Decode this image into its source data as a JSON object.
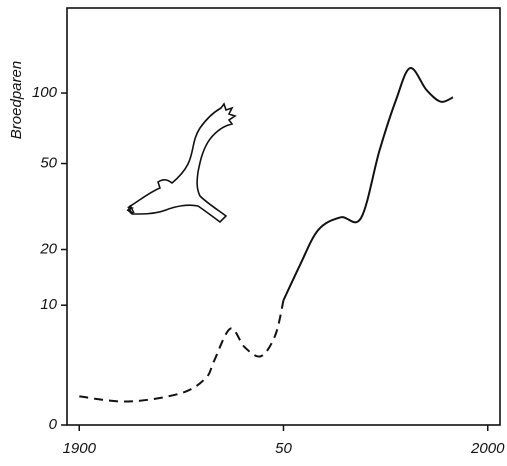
{
  "chart_data": {
    "type": "line",
    "ylabel": "Broedparen",
    "yscale": "log",
    "log_offset": 5,
    "ylim": [
      0,
      224
    ],
    "yticks": [
      0,
      10,
      20,
      50,
      100
    ],
    "xlim": [
      1897,
      2003
    ],
    "xticks": [
      1900,
      {
        "value": 1950,
        "label": "50"
      },
      2000
    ],
    "series": [
      {
        "color": "#111111",
        "dashed": true,
        "x": [
          1900,
          1912,
          1925,
          1931,
          1933,
          1937,
          1940.5,
          1944.5,
          1948,
          1950
        ],
        "values": [
          1.5,
          1.2,
          1.7,
          2.7,
          4,
          7.1,
          5.2,
          4.4,
          6.4,
          10.7
        ]
      },
      {
        "color": "#111111",
        "dashed": false,
        "x": [
          1950,
          1954,
          1958.5,
          1964,
          1969,
          1973.5,
          1977.5,
          1981,
          1985,
          1988.5,
          1991.5
        ],
        "values": [
          10.7,
          16.6,
          24.9,
          28.6,
          28.4,
          57,
          93,
          127,
          103,
          92,
          96
        ]
      }
    ]
  }
}
